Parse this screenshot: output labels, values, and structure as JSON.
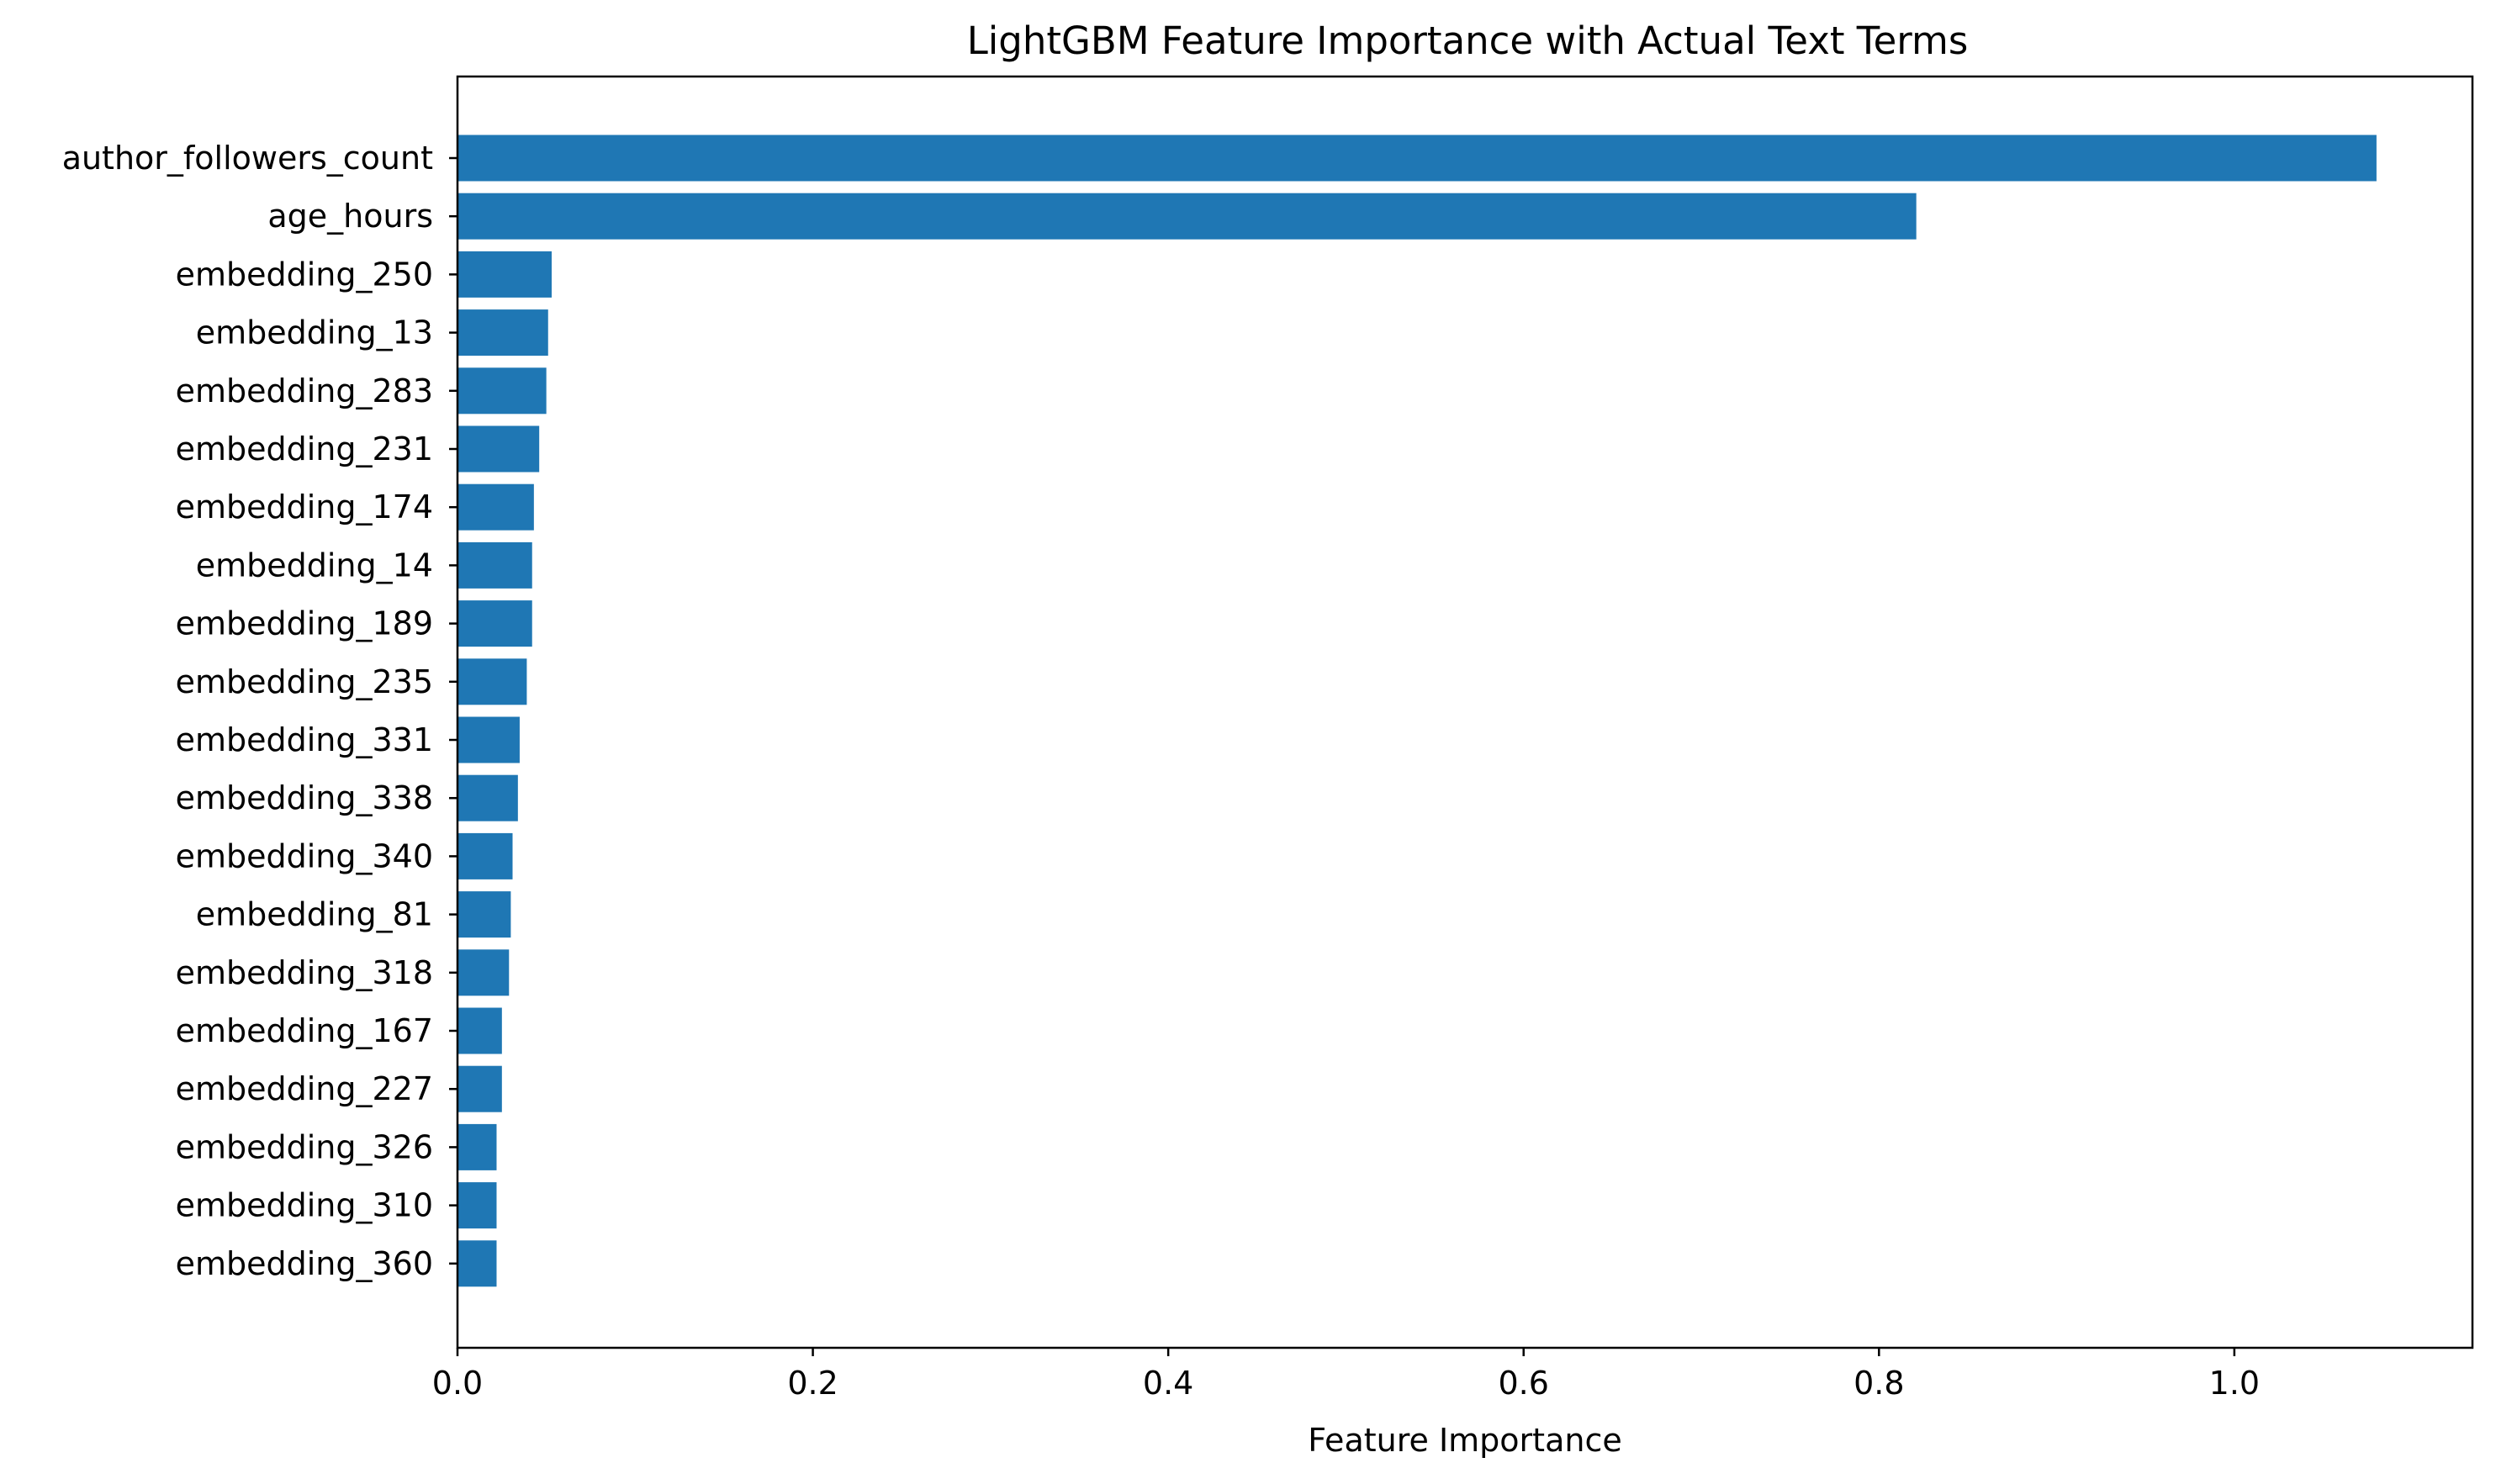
{
  "chart_data": {
    "type": "bar",
    "orientation": "horizontal",
    "title": "LightGBM Feature Importance with Actual Text Terms",
    "xlabel": "Feature Importance",
    "ylabel": "",
    "xlim": [
      0,
      1.134
    ],
    "xticks": [
      "0.0",
      "0.2",
      "0.4",
      "0.6",
      "0.8",
      "1.0"
    ],
    "grid": false,
    "bar_color": "#1f77b4",
    "categories": [
      "author_followers_count",
      "age_hours",
      "embedding_250",
      "embedding_13",
      "embedding_283",
      "embedding_231",
      "embedding_174",
      "embedding_14",
      "embedding_189",
      "embedding_235",
      "embedding_331",
      "embedding_338",
      "embedding_340",
      "embedding_81",
      "embedding_318",
      "embedding_167",
      "embedding_227",
      "embedding_326",
      "embedding_310",
      "embedding_360"
    ],
    "values": [
      1.08,
      0.821,
      0.053,
      0.051,
      0.05,
      0.046,
      0.043,
      0.042,
      0.042,
      0.039,
      0.035,
      0.034,
      0.031,
      0.03,
      0.029,
      0.025,
      0.025,
      0.022,
      0.022,
      0.022
    ]
  }
}
